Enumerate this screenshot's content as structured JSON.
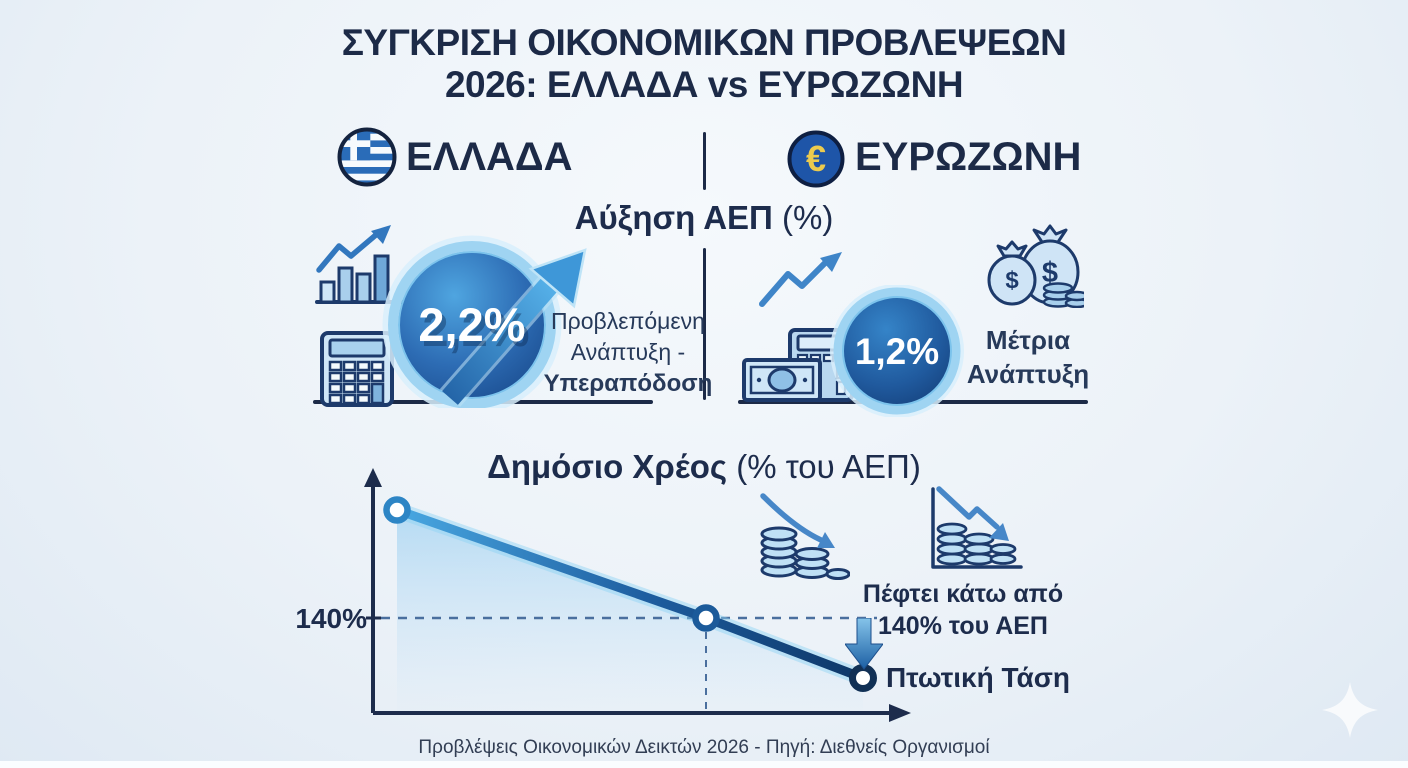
{
  "title": {
    "line1": "ΣΥΓΚΡΙΣΗ ΟΙΚΟΝΟΜΙΚΩΝ ΠΡΟΒΛΕΨΕΩΝ",
    "line2": "2026: ΕΛΛΑΔΑ vs ΕΥΡΩΖΩΝΗ"
  },
  "header": {
    "greece_label": "ΕΛΛΑΔΑ",
    "eurozone_label": "ΕΥΡΩΖΩΝΗ"
  },
  "gdp": {
    "heading_main": "Αύξηση ΑΕΠ",
    "heading_unit": "(%)",
    "greece_value": "2,2%",
    "greece_caption_line1": "Προβλεπόμενη",
    "greece_caption_line2": "Ανάπτυξη -",
    "greece_caption_line3": "Υπεραπόδοση",
    "eurozone_value": "1,2%",
    "eurozone_caption_line1": "Μέτρια",
    "eurozone_caption_line2": "Ανάπτυξη"
  },
  "debt": {
    "heading_main": "Δημόσιο Χρέος",
    "heading_unit": "(% του ΑΕΠ)",
    "threshold_label": "140%",
    "annotation_fall_line1": "Πέφτει κάτω από",
    "annotation_fall_line2": "140% του ΑΕΠ",
    "annotation_trend": "Πτωτική Τάση"
  },
  "footer": {
    "source": "Προβλέψεις Οικονομικών Δεικτών 2026 - Πηγή: Διεθνείς Οργανισμοί"
  },
  "icons": {
    "euro_symbol": "€",
    "dollar_symbol": "$",
    "greece_flag": "greece-flag-icon",
    "euro_coin": "euro-coin-icon",
    "growth_bar_chart": "bar-chart-rising-icon",
    "calculator": "calculator-icon",
    "trend_up": "trend-up-arrow-icon",
    "money_bags": "money-bags-icon",
    "banknote_calculator": "banknote-calculator-icon",
    "coins_falling": "coins-declining-arrow-icon",
    "coins_chart_falling": "declining-coins-chart-icon",
    "down_arrow": "down-arrow-icon",
    "sparkle": "sparkle-icon"
  },
  "colors": {
    "navy_text": "#1c2a47",
    "accent_blue": "#3f85c8",
    "light_icon_blue": "#cfe6f7",
    "badge_gradient_light": "#4fa5e0",
    "badge_gradient_dark": "#1c4f92",
    "ring_blue": "#9fd4f2",
    "euro_yellow": "#eccb4e",
    "dashed_line": "#4a6f9e",
    "background": "#ecf2f8"
  },
  "chart_data": [
    {
      "type": "bar",
      "title": "Αύξηση ΑΕΠ (%)",
      "categories": [
        "ΕΛΛΑΔΑ",
        "ΕΥΡΩΖΩΝΗ"
      ],
      "values": [
        2.2,
        1.2
      ],
      "labels": [
        "2,2%",
        "1,2%"
      ],
      "annotations": [
        "Προβλεπόμενη Ανάπτυξη - Υπεραπόδοση",
        "Μέτρια Ανάπτυξη"
      ],
      "unit": "%"
    },
    {
      "type": "line",
      "title": "Δημόσιο Χρέος (% του ΑΕΠ)",
      "x": [
        0,
        1,
        2
      ],
      "values": [
        158,
        140,
        130
      ],
      "reference_line": {
        "label": "140%",
        "value": 140
      },
      "trend": "declining",
      "area_fill": true,
      "legend_position": "none",
      "annotations": [
        "Πέφτει κάτω από 140% του ΑΕΠ",
        "Πτωτική Τάση"
      ]
    }
  ]
}
